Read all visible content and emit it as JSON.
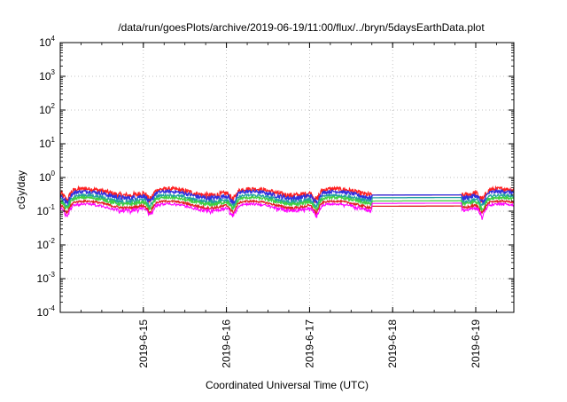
{
  "chart_data": {
    "type": "line",
    "title": "/data/run/goesPlots/archive/2019-06-19/11:00/flux/../bryn/5daysEarthData.plot",
    "xlabel": "Coordinated Universal Time (UTC)",
    "ylabel": "cGy/day",
    "y_scale": "log",
    "ylim": [
      0.0001,
      10000
    ],
    "y_ticks": [
      {
        "base": "10",
        "exp": "4"
      },
      {
        "base": "10",
        "exp": "3"
      },
      {
        "base": "10",
        "exp": "2"
      },
      {
        "base": "10",
        "exp": "1"
      },
      {
        "base": "10",
        "exp": "0"
      },
      {
        "base": "10",
        "exp": "-1"
      },
      {
        "base": "10",
        "exp": "-2"
      },
      {
        "base": "10",
        "exp": "-3"
      },
      {
        "base": "10",
        "exp": "-4"
      }
    ],
    "xlim": [
      "2019-06-14",
      "2019-06-19 11:00"
    ],
    "x_ticks": [
      "2019-6-15",
      "2019-6-16",
      "2019-6-17",
      "2019-6-18",
      "2019-6-19"
    ],
    "grid": true,
    "gap": [
      "2019-06-17 18:00",
      "2019-06-18 20:00"
    ],
    "series": [
      {
        "color": "#ff2020",
        "level": 0.42,
        "amp": 0.3,
        "flat": 0.3
      },
      {
        "color": "#3030e0",
        "level": 0.35,
        "amp": 0.25,
        "flat": 0.3
      },
      {
        "color": "#20a0a0",
        "level": 0.27,
        "amp": 0.2,
        "flat": 0.25
      },
      {
        "color": "#40d040",
        "level": 0.23,
        "amp": 0.17,
        "flat": 0.2
      },
      {
        "color": "#e02020",
        "level": 0.18,
        "amp": 0.13,
        "flat": 0.14
      },
      {
        "color": "#ff00ff",
        "level": 0.15,
        "amp": 0.16,
        "flat": 0.17
      }
    ]
  }
}
